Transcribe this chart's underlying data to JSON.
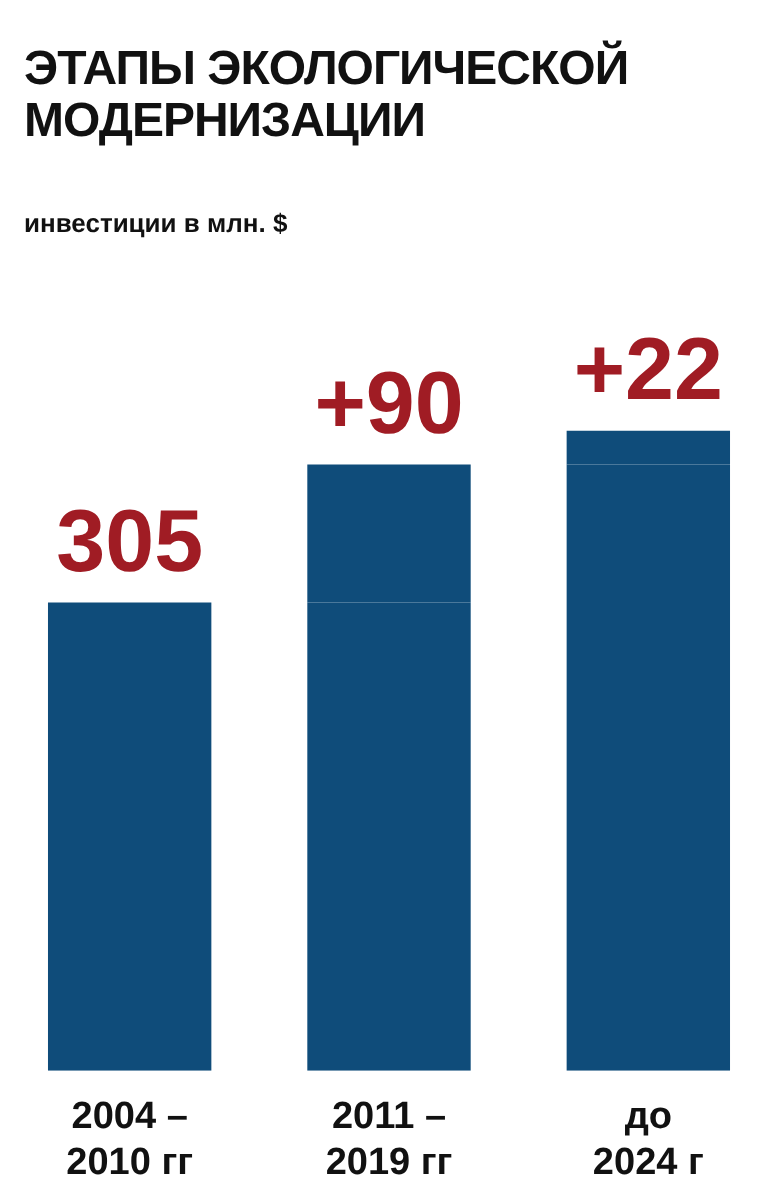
{
  "chart_data": {
    "type": "bar",
    "title": "ЭТАПЫ ЭКОЛОГИЧЕСКОЙ МОДЕРНИЗАЦИИ",
    "subtitle": "инвестиции в млн. $",
    "categories": [
      "2004 –\n2010 гг",
      "2011 –\n2019 гг",
      "до\n2024 г"
    ],
    "stacked": true,
    "series": [
      {
        "color": "#0f4c7a",
        "values": [
          305,
          305,
          395
        ],
        "value_labels": [
          "305",
          null,
          null
        ]
      },
      {
        "color": "#0f4c7a",
        "values": [
          null,
          90,
          22
        ],
        "value_labels": [
          null,
          "+90",
          "+22"
        ]
      }
    ],
    "grid": false,
    "legend": false
  }
}
